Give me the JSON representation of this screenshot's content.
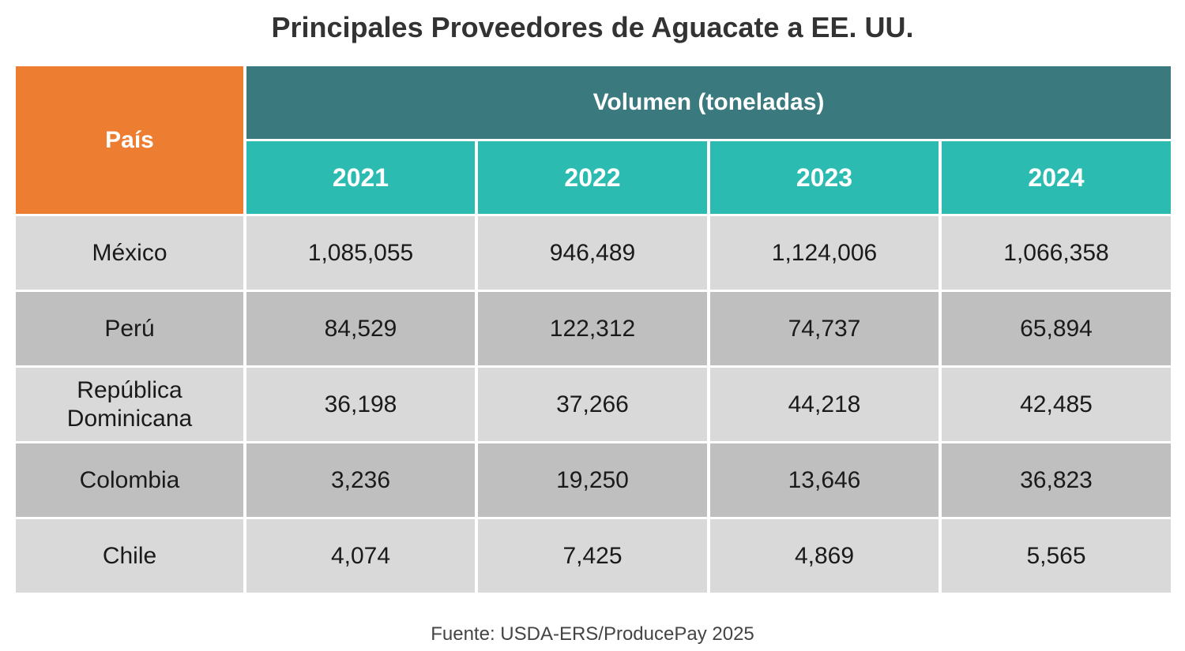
{
  "colors": {
    "country_header": "#ED7D31",
    "group_header": "#3A7A7E",
    "year_header": "#2BBBB0",
    "row_light": "#D9D9D9",
    "row_dark": "#BFBFBF"
  },
  "chart_data": {
    "type": "table",
    "title": "Principales Proveedores de Aguacate a EE. UU.",
    "row_header_label": "País",
    "column_group_label": "Volumen (toneladas)",
    "columns": [
      "2021",
      "2022",
      "2023",
      "2024"
    ],
    "rows": [
      {
        "country": "México",
        "values": [
          "1,085,055",
          "946,489",
          "1,124,006",
          "1,066,358"
        ]
      },
      {
        "country": "Perú",
        "values": [
          "84,529",
          "122,312",
          "74,737",
          "65,894"
        ]
      },
      {
        "country": "República Dominicana",
        "values": [
          "36,198",
          "37,266",
          "44,218",
          "42,485"
        ]
      },
      {
        "country": "Colombia",
        "values": [
          "3,236",
          "19,250",
          "13,646",
          "36,823"
        ]
      },
      {
        "country": "Chile",
        "values": [
          "4,074",
          "7,425",
          "4,869",
          "5,565"
        ]
      }
    ],
    "source": "Fuente: USDA-ERS/ProducePay 2025"
  }
}
